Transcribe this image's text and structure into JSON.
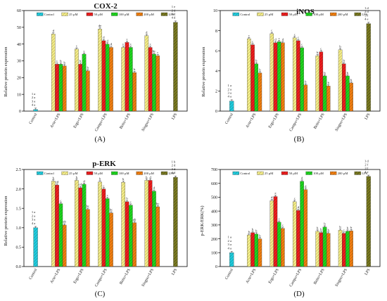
{
  "colors": {
    "Control": "#22ccdd",
    "25 µM": "#f2ec8e",
    "50 µM": "#ee1e1e",
    "100 µM": "#1ed61e",
    "200 µM": "#f07f10",
    "LPS": "#7a7a22"
  },
  "chart_data": [
    {
      "panel_label": "(A)",
      "type": "bar",
      "title": "COX-2",
      "ylabel": "Relative protein expression",
      "ylim": [
        0,
        60
      ],
      "yticks": [
        0,
        10,
        20,
        30,
        40,
        50,
        60
      ],
      "categories": [
        "Control",
        "Acte+LPS",
        "Ergo+LPS",
        "Campo+LPS",
        "Beito+LPS",
        "Singno+LPS",
        "LPS"
      ],
      "legend": [
        "Control",
        "25 µM",
        "50 µM",
        "100 µM",
        "200 µM",
        "LPS"
      ],
      "legend_position": "top",
      "groups": [
        {
          "bars": [
            {
              "series": "Control",
              "value": 1
            }
          ],
          "letters": [
            "1 a",
            "2 a",
            "3 a",
            "4 a"
          ]
        },
        {
          "bars": [
            {
              "series": "25 µM",
              "value": 46,
              "label": "d"
            },
            {
              "series": "50 µM",
              "value": 28,
              "label": "c"
            },
            {
              "series": "100 µM",
              "value": 28,
              "label": "b"
            },
            {
              "series": "200 µM",
              "value": 27,
              "label": "b"
            }
          ]
        },
        {
          "bars": [
            {
              "series": "25 µM",
              "value": 37,
              "label": "c"
            },
            {
              "series": "50 µM",
              "value": 28,
              "label": "b"
            },
            {
              "series": "100 µM",
              "value": 34,
              "label": "c"
            },
            {
              "series": "200 µM",
              "value": 24,
              "label": "b"
            }
          ]
        },
        {
          "bars": [
            {
              "series": "25 µM",
              "value": 49,
              "label": "de"
            },
            {
              "series": "50 µM",
              "value": 42,
              "label": "d"
            },
            {
              "series": "100 µM",
              "value": 40,
              "label": "d"
            },
            {
              "series": "200 µM",
              "value": 38,
              "label": "d"
            }
          ]
        },
        {
          "bars": [
            {
              "series": "25 µM",
              "value": 38,
              "label": "c"
            },
            {
              "series": "50 µM",
              "value": 41,
              "label": "c"
            },
            {
              "series": "100 µM",
              "value": 38,
              "label": "c"
            },
            {
              "series": "200 µM",
              "value": 23,
              "label": "b"
            }
          ]
        },
        {
          "bars": [
            {
              "series": "25 µM",
              "value": 45,
              "label": "d"
            },
            {
              "series": "50 µM",
              "value": 38,
              "label": "c"
            },
            {
              "series": "100 µM",
              "value": 34,
              "label": "bc"
            },
            {
              "series": "200 µM",
              "value": 33,
              "label": "c"
            }
          ]
        },
        {
          "bars": [
            {
              "series": "LPS",
              "value": 53
            }
          ],
          "letters": [
            "1 e",
            "2 d",
            "3 d",
            "4 d"
          ]
        }
      ]
    },
    {
      "panel_label": "(B)",
      "type": "bar",
      "title": "iNOS",
      "ylabel": "Relative protein expression",
      "ylim": [
        0,
        10
      ],
      "yticks": [
        0,
        2,
        4,
        6,
        8,
        10
      ],
      "categories": [
        "Control",
        "Acte+LPS",
        "Ergo+LPS",
        "Campo+LPS",
        "Beito+LPS",
        "Singno+LPS",
        "LPS"
      ],
      "legend": [
        "Control",
        "25 µM",
        "50 µM",
        "100 µM",
        "200 µM",
        "LPS"
      ],
      "legend_position": "top",
      "groups": [
        {
          "bars": [
            {
              "series": "Control",
              "value": 1
            }
          ],
          "letters": [
            "1 a",
            "2 a",
            "3 a",
            "4 a"
          ]
        },
        {
          "bars": [
            {
              "series": "25 µM",
              "value": 7.2,
              "label": "c"
            },
            {
              "series": "50 µM",
              "value": 6.6,
              "label": "c"
            },
            {
              "series": "100 µM",
              "value": 4.7,
              "label": "b"
            },
            {
              "series": "200 µM",
              "value": 3.8,
              "label": "b"
            }
          ]
        },
        {
          "bars": [
            {
              "series": "25 µM",
              "value": 7.7,
              "label": "c"
            },
            {
              "series": "50 µM",
              "value": 6.8,
              "label": "d"
            },
            {
              "series": "100 µM",
              "value": 6.9,
              "label": "c"
            },
            {
              "series": "200 µM",
              "value": 6.8,
              "label": "d"
            }
          ]
        },
        {
          "bars": [
            {
              "series": "25 µM",
              "value": 7.3,
              "label": "c"
            },
            {
              "series": "50 µM",
              "value": 7.0,
              "label": "c"
            },
            {
              "series": "100 µM",
              "value": 6.3,
              "label": "c"
            },
            {
              "series": "200 µM",
              "value": 2.6,
              "label": "b"
            }
          ]
        },
        {
          "bars": [
            {
              "series": "25 µM",
              "value": 5.5,
              "label": "b"
            },
            {
              "series": "50 µM",
              "value": 5.9,
              "label": "c"
            },
            {
              "series": "100 µM",
              "value": 3.5,
              "label": "b"
            },
            {
              "series": "200 µM",
              "value": 2.5,
              "label": "b"
            }
          ]
        },
        {
          "bars": [
            {
              "series": "25 µM",
              "value": 6.1,
              "label": "b"
            },
            {
              "series": "50 µM",
              "value": 4.7,
              "label": "b"
            },
            {
              "series": "100 µM",
              "value": 3.5,
              "label": "b"
            },
            {
              "series": "200 µM",
              "value": 2.8,
              "label": "b"
            }
          ]
        },
        {
          "bars": [
            {
              "series": "LPS",
              "value": 8.7
            }
          ],
          "letters": [
            "1 d",
            "2 d",
            "3 f",
            "4 e"
          ]
        }
      ]
    },
    {
      "panel_label": "(C)",
      "type": "bar",
      "title": "p-ERK",
      "ylabel": "Relative protein expression",
      "ylim": [
        0,
        2.5
      ],
      "yticks": [
        0.0,
        0.5,
        1.0,
        1.5,
        2.0,
        2.5
      ],
      "categories": [
        "Control",
        "Acte+LPS",
        "Ergo+LPS",
        "Campo+LPS",
        "Beito+LPS",
        "Singno+LPS",
        "LPS"
      ],
      "legend": [
        "Control",
        "25 µM",
        "50 µM",
        "100 µM",
        "200 µM",
        "LPS"
      ],
      "legend_position": "top",
      "groups": [
        {
          "bars": [
            {
              "series": "Control",
              "value": 1.0
            }
          ],
          "letters": [
            "1 a",
            "2 a",
            "3 a",
            "4 a"
          ]
        },
        {
          "bars": [
            {
              "series": "25 µM",
              "value": 2.2,
              "label": "b"
            },
            {
              "series": "50 µM",
              "value": 2.1,
              "label": "cd"
            },
            {
              "series": "100 µM",
              "value": 1.62,
              "label": "c"
            },
            {
              "series": "200 µM",
              "value": 1.07,
              "label": "ab"
            }
          ]
        },
        {
          "bars": [
            {
              "series": "25 µM",
              "value": 2.22,
              "label": "b"
            },
            {
              "series": "50 µM",
              "value": 2.03,
              "label": "cd"
            },
            {
              "series": "100 µM",
              "value": 2.12,
              "label": "d"
            },
            {
              "series": "200 µM",
              "value": 1.47,
              "label": "bc"
            }
          ]
        },
        {
          "bars": [
            {
              "series": "25 µM",
              "value": 2.18,
              "label": "b"
            },
            {
              "series": "50 µM",
              "value": 2.0,
              "label": "c"
            },
            {
              "series": "100 µM",
              "value": 1.75,
              "label": "c"
            },
            {
              "series": "200 µM",
              "value": 1.38,
              "label": "bc"
            }
          ]
        },
        {
          "bars": [
            {
              "series": "25 µM",
              "value": 2.17,
              "label": "b"
            },
            {
              "series": "50 µM",
              "value": 1.67,
              "label": "b"
            },
            {
              "series": "100 µM",
              "value": 1.58,
              "label": "c"
            },
            {
              "series": "200 µM",
              "value": 1.13,
              "label": "ab"
            }
          ]
        },
        {
          "bars": [
            {
              "series": "25 µM",
              "value": 2.22,
              "label": "b"
            },
            {
              "series": "50 µM",
              "value": 2.22,
              "label": "d"
            },
            {
              "series": "100 µM",
              "value": 1.94,
              "label": "d"
            },
            {
              "series": "200 µM",
              "value": 1.54,
              "label": "bc"
            }
          ]
        },
        {
          "bars": [
            {
              "series": "LPS",
              "value": 2.3
            }
          ],
          "letters": [
            "1 b",
            "2 d",
            "3 d",
            "4 d"
          ]
        }
      ]
    },
    {
      "panel_label": "(D)",
      "type": "bar",
      "title": "",
      "ylabel": "p-ERK/ERK(%)",
      "ylim": [
        0,
        700
      ],
      "yticks": [
        0,
        100,
        200,
        300,
        400,
        500,
        600,
        700
      ],
      "categories": [
        "Control",
        "Acte+LPS",
        "Ergo+LPS",
        "Campo+LPS",
        "Beito+LPS",
        "Singno+LPS",
        "LPS"
      ],
      "legend": [
        "Control",
        "25 µM",
        "50 µM",
        "100 µM",
        "200 µM",
        "LPS"
      ],
      "legend_position": "top",
      "groups": [
        {
          "bars": [
            {
              "series": "Control",
              "value": 100
            }
          ],
          "letters": [
            "1 a",
            "2 a",
            "3 a",
            "4 a"
          ]
        },
        {
          "bars": [
            {
              "series": "25 µM",
              "value": 228,
              "label": "b"
            },
            {
              "series": "50 µM",
              "value": 245,
              "label": "b"
            },
            {
              "series": "100 µM",
              "value": 235,
              "label": "b"
            },
            {
              "series": "200 µM",
              "value": 200,
              "label": "b"
            }
          ]
        },
        {
          "bars": [
            {
              "series": "25 µM",
              "value": 475,
              "label": "d"
            },
            {
              "series": "50 µM",
              "value": 505,
              "label": "e"
            },
            {
              "series": "100 µM",
              "value": 320,
              "label": "c"
            },
            {
              "series": "200 µM",
              "value": 275,
              "label": "c"
            }
          ]
        },
        {
          "bars": [
            {
              "series": "25 µM",
              "value": 468,
              "label": "c"
            },
            {
              "series": "50 µM",
              "value": 405,
              "label": "d"
            },
            {
              "series": "100 µM",
              "value": 615,
              "label": "d"
            },
            {
              "series": "200 µM",
              "value": 555,
              "label": "d"
            }
          ]
        },
        {
          "bars": [
            {
              "series": "25 µM",
              "value": 255,
              "label": "b"
            },
            {
              "series": "50 µM",
              "value": 245,
              "label": "b"
            },
            {
              "series": "100 µM",
              "value": 285,
              "label": "b"
            },
            {
              "series": "200 µM",
              "value": 240,
              "label": "b"
            }
          ]
        },
        {
          "bars": [
            {
              "series": "25 µM",
              "value": 262,
              "label": "b"
            },
            {
              "series": "50 µM",
              "value": 240,
              "label": "c"
            },
            {
              "series": "100 µM",
              "value": 255,
              "label": "b"
            },
            {
              "series": "200 µM",
              "value": 258,
              "label": "b"
            }
          ]
        },
        {
          "bars": [
            {
              "series": "LPS",
              "value": 650
            }
          ],
          "letters": [
            "1 d",
            "2 f",
            "3 f",
            "4 e"
          ]
        }
      ]
    }
  ]
}
